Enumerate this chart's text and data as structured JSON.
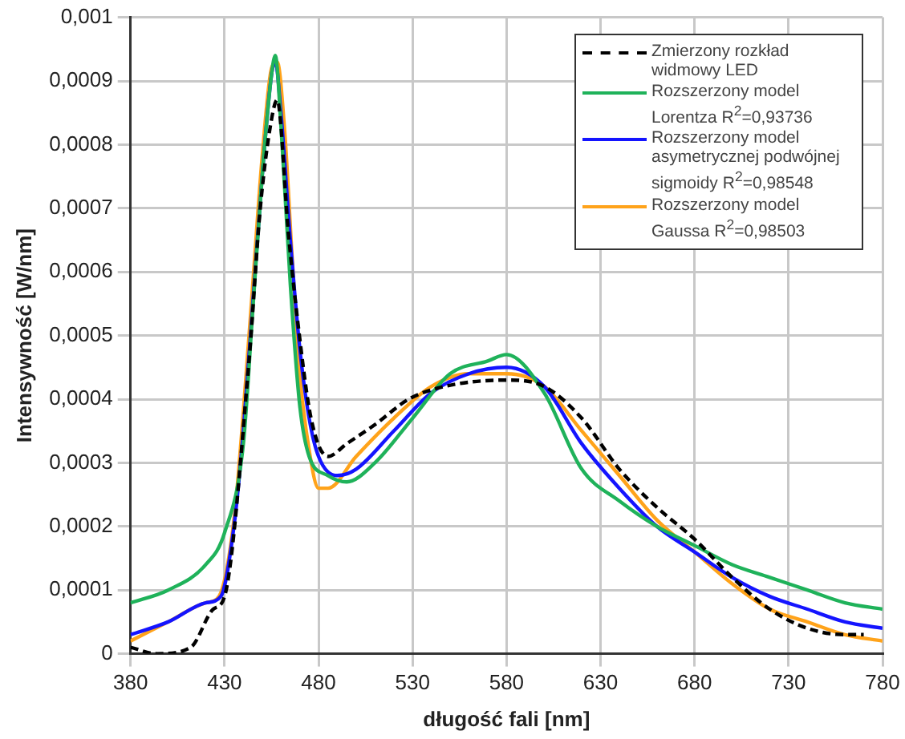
{
  "chart_data": {
    "type": "line",
    "xlabel": "długość fali [nm]",
    "ylabel": "Intensywność [W/nm]",
    "xlim": [
      380,
      780
    ],
    "xticks": [
      380,
      430,
      480,
      530,
      580,
      630,
      680,
      730,
      780
    ],
    "ylim": [
      0,
      0.001
    ],
    "yticks": [
      0,
      {
        "value": 0.0001,
        "label": "0,0001"
      },
      {
        "value": 0.0002,
        "label": "0,0002"
      },
      {
        "value": 0.0003,
        "label": "0,0003"
      },
      {
        "value": 0.0004,
        "label": "0,0004"
      },
      {
        "value": 0.0005,
        "label": "0,0005"
      },
      {
        "value": 0.0006,
        "label": "0,0006"
      },
      {
        "value": 0.0007,
        "label": "0,0007"
      },
      {
        "value": 0.0008,
        "label": "0,0008"
      },
      {
        "value": 0.0009,
        "label": "0,0009"
      },
      {
        "value": 0.001,
        "label": "0,001"
      }
    ],
    "grid": true,
    "legend": "top right",
    "marker": "none",
    "series": [
      {
        "name": "Zmierzony rozkład widmowy LED",
        "color": "#000000",
        "line_style": "dashed",
        "x": [
          380,
          394,
          412,
          424,
          430,
          443,
          449,
          455,
          458,
          464,
          469,
          476,
          485,
          495,
          510,
          528,
          547,
          580,
          600,
          620,
          640,
          660,
          680,
          700,
          720,
          740,
          760,
          770
        ],
        "values": [
          1e-05,
          0,
          1e-05,
          7e-05,
          9e-05,
          0.00046,
          0.0007,
          0.00084,
          0.00087,
          0.00066,
          0.00052,
          0.00037,
          0.00031,
          0.00033,
          0.00036,
          0.0004,
          0.00042,
          0.00043,
          0.00042,
          0.00037,
          0.00029,
          0.00023,
          0.00018,
          0.00012,
          7e-05,
          4e-05,
          3e-05,
          3e-05
        ]
      },
      {
        "name": "Rozszerzony model Lorentza R$^{2}$=0,93736",
        "color": "#1fb25a",
        "line_style": "solid",
        "x": [
          380,
          400,
          420,
          430,
          440,
          445,
          450,
          455,
          457,
          460,
          465,
          470,
          475,
          485,
          495,
          510,
          530,
          550,
          570,
          580,
          600,
          620,
          640,
          660,
          680,
          700,
          720,
          740,
          760,
          780
        ],
        "values": [
          8e-05,
          0.0001,
          0.00014,
          0.00019,
          0.00033,
          0.00054,
          0.00075,
          0.00091,
          0.00094,
          0.00083,
          0.00058,
          0.00039,
          0.00031,
          0.00028,
          0.00027,
          0.0003,
          0.00037,
          0.00044,
          0.00046,
          0.00047,
          0.00041,
          0.00029,
          0.00024,
          0.0002,
          0.00017,
          0.00014,
          0.00012,
          0.0001,
          8e-05,
          7e-05
        ]
      },
      {
        "name": "Rozszerzony model asymetrycznej podwójnej sigmoidy R$^{2}$=0,98548",
        "color": "#1414ff",
        "line_style": "solid",
        "x": [
          380,
          400,
          420,
          428,
          435,
          440,
          445,
          450,
          455,
          457,
          460,
          465,
          470,
          475,
          480,
          490,
          500,
          520,
          540,
          560,
          580,
          600,
          620,
          640,
          660,
          680,
          700,
          720,
          740,
          760,
          780
        ],
        "values": [
          3e-05,
          5e-05,
          8e-05,
          9e-05,
          0.0002,
          0.00035,
          0.00055,
          0.00075,
          0.00091,
          0.00093,
          0.00085,
          0.00065,
          0.00048,
          0.00037,
          0.00031,
          0.00028,
          0.00029,
          0.00035,
          0.00041,
          0.00044,
          0.00045,
          0.00042,
          0.00033,
          0.00026,
          0.0002,
          0.00016,
          0.00012,
          9e-05,
          7e-05,
          5e-05,
          4e-05
        ]
      },
      {
        "name": "Rozszerzony model Gaussa R$^{2}$=0,98503",
        "color": "#ffa31a",
        "line_style": "solid",
        "x": [
          380,
          400,
          420,
          427,
          435,
          440,
          445,
          450,
          455,
          458,
          462,
          466,
          470,
          475,
          480,
          485,
          500,
          520,
          540,
          560,
          580,
          600,
          620,
          640,
          660,
          680,
          700,
          720,
          740,
          760,
          780
        ],
        "values": [
          2e-05,
          5e-05,
          8e-05,
          9e-05,
          0.00021,
          0.00038,
          0.00058,
          0.00078,
          0.00092,
          0.00093,
          0.00082,
          0.00062,
          0.00044,
          0.00032,
          0.00026,
          0.00026,
          0.00031,
          0.00037,
          0.00042,
          0.00044,
          0.00044,
          0.00042,
          0.00035,
          0.00028,
          0.00021,
          0.00016,
          0.00011,
          7e-05,
          5e-05,
          3e-05,
          2e-05
        ]
      }
    ]
  }
}
